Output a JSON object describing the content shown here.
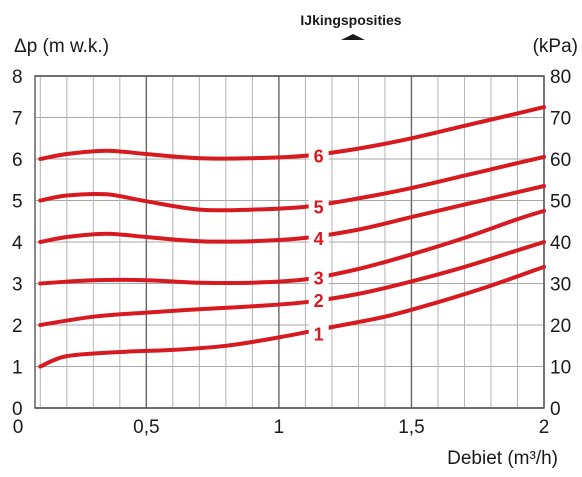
{
  "chart_data": {
    "type": "line",
    "title": "IJkingsposities",
    "ylabel_left": "Δp (m w.k.)",
    "ylabel_right": "(kPa)",
    "xlabel": "Debiet (m³/h)",
    "xlim": [
      0.08,
      2.0
    ],
    "ylim": [
      0,
      8
    ],
    "y2lim": [
      0,
      80
    ],
    "x_ticks": [
      {
        "value": 0,
        "label": "0"
      },
      {
        "value": 0.5,
        "label": "0,5"
      },
      {
        "value": 1,
        "label": "1"
      },
      {
        "value": 1.5,
        "label": "1,5"
      },
      {
        "value": 2,
        "label": "2"
      }
    ],
    "y_ticks_left": [
      "0",
      "1",
      "2",
      "3",
      "4",
      "5",
      "6",
      "7",
      "8"
    ],
    "y_ticks_right": [
      "0",
      "10",
      "20",
      "30",
      "40",
      "50",
      "60",
      "70",
      "80"
    ],
    "grid": true,
    "line_color": "#d71920",
    "series": [
      {
        "name": "1",
        "label_at": [
          1.15,
          1.8
        ],
        "x": [
          0.1,
          0.2,
          0.4,
          0.6,
          0.8,
          1.0,
          1.2,
          1.4,
          1.6,
          1.8,
          2.0
        ],
        "y": [
          1.0,
          1.25,
          1.35,
          1.4,
          1.5,
          1.7,
          1.95,
          2.2,
          2.55,
          2.95,
          3.4
        ]
      },
      {
        "name": "2",
        "label_at": [
          1.15,
          2.6
        ],
        "x": [
          0.1,
          0.3,
          0.5,
          0.7,
          0.9,
          1.1,
          1.3,
          1.5,
          1.7,
          1.9,
          2.0
        ],
        "y": [
          2.0,
          2.2,
          2.3,
          2.38,
          2.45,
          2.55,
          2.75,
          3.05,
          3.4,
          3.8,
          4.0
        ]
      },
      {
        "name": "3",
        "label_at": [
          1.15,
          3.15
        ],
        "x": [
          0.1,
          0.3,
          0.5,
          0.7,
          0.9,
          1.1,
          1.3,
          1.5,
          1.7,
          1.9,
          2.0
        ],
        "y": [
          3.0,
          3.08,
          3.08,
          3.02,
          3.02,
          3.1,
          3.35,
          3.7,
          4.1,
          4.55,
          4.75
        ]
      },
      {
        "name": "4",
        "label_at": [
          1.15,
          4.1
        ],
        "x": [
          0.1,
          0.2,
          0.35,
          0.5,
          0.7,
          0.9,
          1.1,
          1.3,
          1.5,
          1.7,
          1.9,
          2.0
        ],
        "y": [
          4.0,
          4.12,
          4.2,
          4.12,
          4.02,
          4.02,
          4.1,
          4.3,
          4.6,
          4.9,
          5.2,
          5.35
        ]
      },
      {
        "name": "5",
        "label_at": [
          1.15,
          4.85
        ],
        "x": [
          0.1,
          0.2,
          0.35,
          0.5,
          0.7,
          0.9,
          1.1,
          1.3,
          1.5,
          1.7,
          1.9,
          2.0
        ],
        "y": [
          5.0,
          5.12,
          5.15,
          4.98,
          4.78,
          4.78,
          4.85,
          5.05,
          5.3,
          5.6,
          5.9,
          6.05
        ]
      },
      {
        "name": "6",
        "label_at": [
          1.15,
          6.08
        ],
        "x": [
          0.1,
          0.2,
          0.35,
          0.5,
          0.7,
          0.9,
          1.1,
          1.3,
          1.5,
          1.7,
          1.9,
          2.0
        ],
        "y": [
          6.0,
          6.12,
          6.2,
          6.12,
          6.02,
          6.02,
          6.08,
          6.25,
          6.5,
          6.8,
          7.1,
          7.25
        ]
      }
    ]
  }
}
